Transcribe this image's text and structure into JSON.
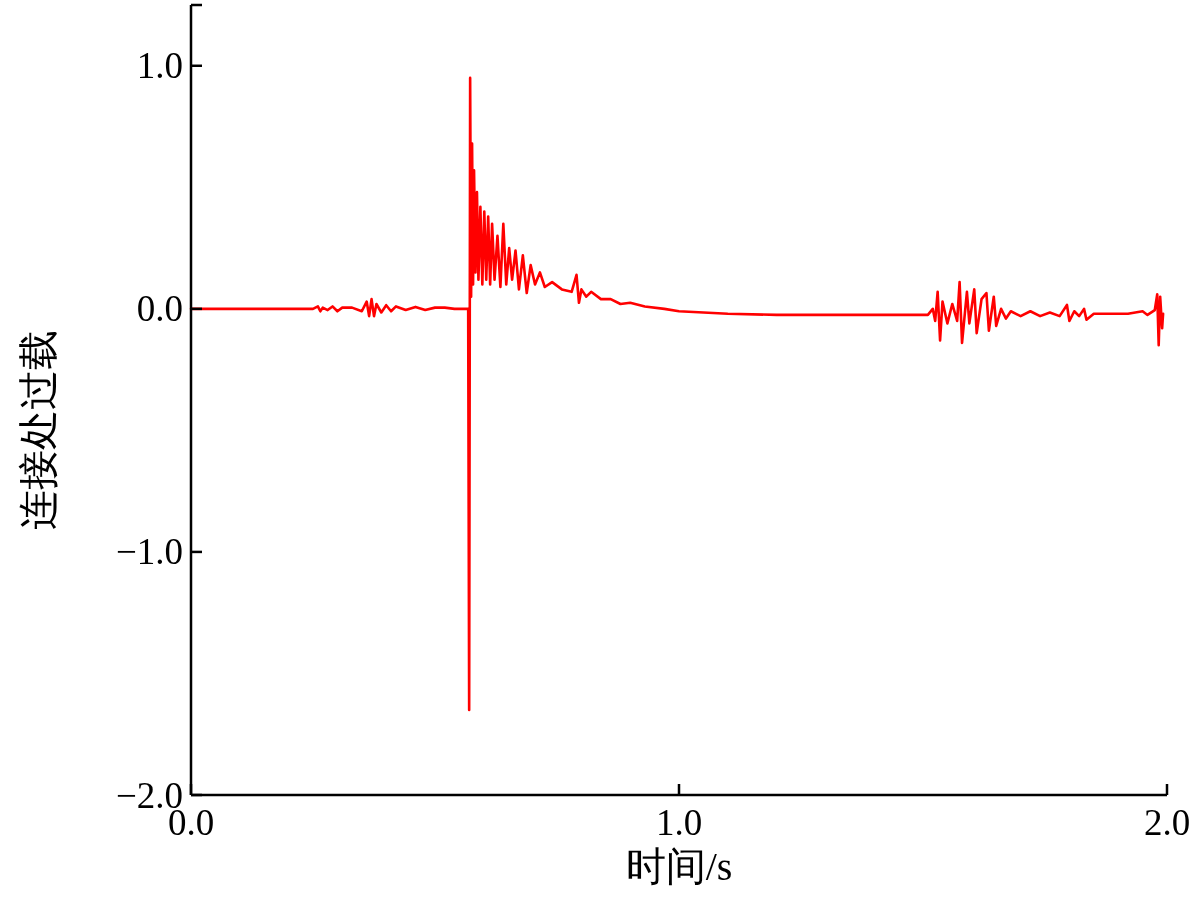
{
  "chart_data": {
    "type": "line",
    "xlabel": "时间/s",
    "ylabel": "连接处过载",
    "xlim": [
      0,
      2.0
    ],
    "ylim": [
      -2.0,
      1.25
    ],
    "xticks": [
      {
        "value": 0,
        "label": "0.0"
      },
      {
        "value": 1,
        "label": "1.0"
      },
      {
        "value": 2,
        "label": "2.0"
      }
    ],
    "yticks": [
      {
        "value": -2,
        "label": "−2.0"
      },
      {
        "value": -1,
        "label": "−1.0"
      },
      {
        "value": 0,
        "label": "0.0"
      },
      {
        "value": 1,
        "label": "1.0"
      },
      {
        "value": 1.25,
        "label": null
      }
    ],
    "x": [
      0,
      0.25,
      0.26,
      0.265,
      0.27,
      0.28,
      0.29,
      0.3,
      0.31,
      0.33,
      0.35,
      0.36,
      0.365,
      0.37,
      0.375,
      0.38,
      0.39,
      0.4,
      0.41,
      0.42,
      0.44,
      0.46,
      0.48,
      0.5,
      0.52,
      0.54,
      0.568,
      0.57,
      0.572,
      0.574,
      0.576,
      0.578,
      0.58,
      0.583,
      0.586,
      0.589,
      0.593,
      0.597,
      0.601,
      0.605,
      0.609,
      0.613,
      0.617,
      0.622,
      0.628,
      0.634,
      0.64,
      0.646,
      0.652,
      0.658,
      0.665,
      0.672,
      0.68,
      0.688,
      0.696,
      0.705,
      0.715,
      0.725,
      0.74,
      0.76,
      0.78,
      0.79,
      0.795,
      0.8,
      0.81,
      0.82,
      0.84,
      0.86,
      0.88,
      0.9,
      0.93,
      0.97,
      1.0,
      1.1,
      1.2,
      1.3,
      1.4,
      1.51,
      1.52,
      1.525,
      1.53,
      1.535,
      1.54,
      1.55,
      1.56,
      1.57,
      1.575,
      1.58,
      1.59,
      1.595,
      1.605,
      1.61,
      1.62,
      1.63,
      1.635,
      1.645,
      1.65,
      1.66,
      1.67,
      1.68,
      1.7,
      1.72,
      1.74,
      1.76,
      1.78,
      1.795,
      1.8,
      1.81,
      1.82,
      1.83,
      1.835,
      1.85,
      1.88,
      1.92,
      1.95,
      1.96,
      1.975,
      1.98,
      1.983,
      1.986,
      1.99,
      1.992
    ],
    "series": [
      {
        "color": "#ff0000",
        "values": [
          0,
          0,
          0.01,
          -0.01,
          0.005,
          -0.005,
          0.01,
          -0.01,
          0.005,
          0.005,
          -0.01,
          0.03,
          -0.03,
          0.04,
          -0.03,
          0.02,
          -0.015,
          0.015,
          -0.01,
          0.01,
          -0.005,
          0.008,
          -0.005,
          0.005,
          0.005,
          0,
          0,
          -1.65,
          0.95,
          0.05,
          0.68,
          0.1,
          0.57,
          0.15,
          0.48,
          0.12,
          0.42,
          0.1,
          0.4,
          0.12,
          0.38,
          0.1,
          0.35,
          0.12,
          0.3,
          0.09,
          0.35,
          0.1,
          0.25,
          0.12,
          0.24,
          0.08,
          0.22,
          0.065,
          0.18,
          0.1,
          0.15,
          0.09,
          0.11,
          0.08,
          0.07,
          0.14,
          0.025,
          0.08,
          0.05,
          0.07,
          0.04,
          0.04,
          0.02,
          0.025,
          0.01,
          0,
          -0.01,
          -0.02,
          -0.025,
          -0.025,
          -0.025,
          -0.025,
          0,
          -0.05,
          0.07,
          -0.13,
          0.03,
          -0.06,
          0.02,
          -0.05,
          0.11,
          -0.14,
          0.07,
          -0.06,
          0.08,
          -0.1,
          0.04,
          0.065,
          -0.09,
          0.05,
          -0.07,
          0,
          -0.04,
          -0.01,
          -0.03,
          -0.01,
          -0.03,
          -0.015,
          -0.03,
          0.016,
          -0.05,
          -0.01,
          -0.03,
          0,
          -0.045,
          -0.02,
          -0.02,
          -0.02,
          -0.01,
          -0.025,
          -0.005,
          0.06,
          -0.15,
          0.05,
          -0.08,
          -0.02
        ]
      }
    ]
  }
}
